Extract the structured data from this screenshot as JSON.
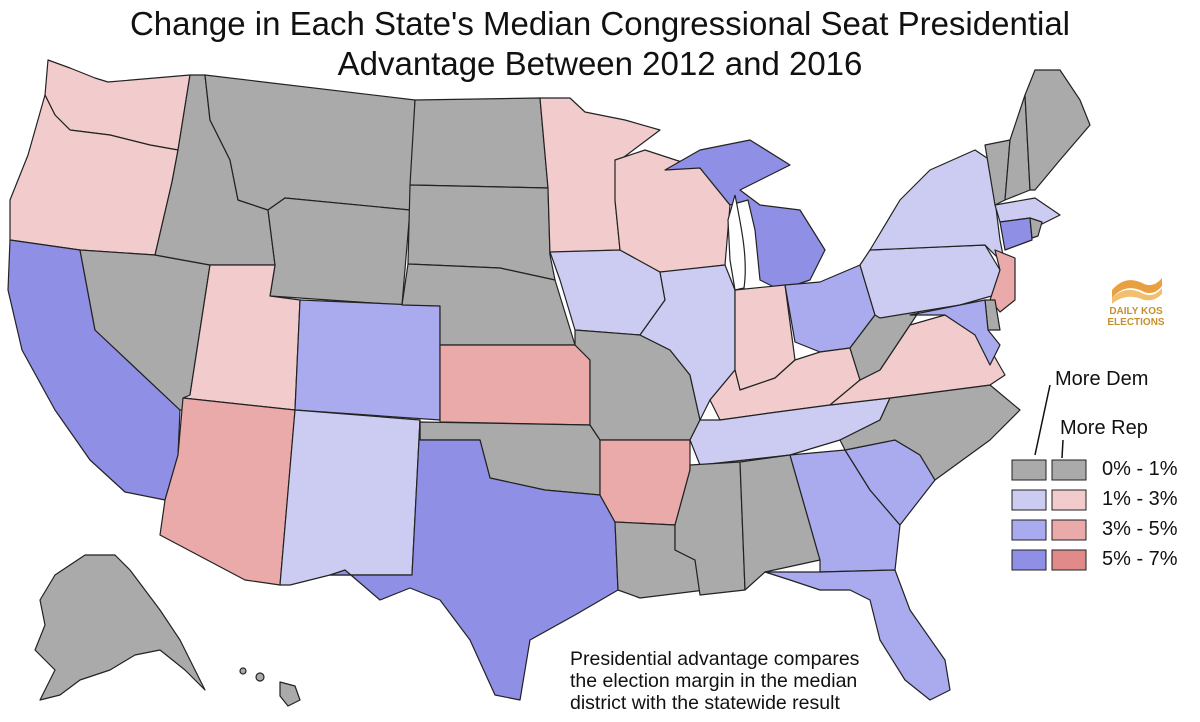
{
  "title": {
    "line1": "Change in Each State's Median Congressional Seat Presidential",
    "line2": "Advantage Between 2012 and 2016"
  },
  "colors": {
    "gray": "#aaaaaa",
    "dem_1_3": "#ccccf2",
    "dem_3_5": "#aaaaee",
    "dem_5_7": "#8f8fe6",
    "rep_1_3": "#f2cccc",
    "rep_3_5": "#ebaaaa",
    "rep_5_7": "#e08a8a",
    "land_outline": "#222222"
  },
  "legend": {
    "more_dem": "More Dem",
    "more_rep": "More Rep",
    "bins": [
      {
        "label": "0% -   1%",
        "dem_color": "gray",
        "rep_color": "gray"
      },
      {
        "label": "1% -   3%",
        "dem_color": "dem_1_3",
        "rep_color": "rep_1_3"
      },
      {
        "label": "3% -   5%",
        "dem_color": "dem_3_5",
        "rep_color": "rep_3_5"
      },
      {
        "label": "5% -   7%",
        "dem_color": "dem_5_7",
        "rep_color": "rep_5_7"
      }
    ]
  },
  "logo": {
    "line1": "DAILY KOS",
    "line2": "ELECTIONS"
  },
  "note": {
    "line1": "Presidential advantage compares",
    "line2": "the election margin in the median",
    "line3": "district with the statewide result"
  },
  "states": [
    {
      "abbr": "WA",
      "fill": "rep_1_3"
    },
    {
      "abbr": "OR",
      "fill": "rep_1_3"
    },
    {
      "abbr": "CA",
      "fill": "dem_5_7"
    },
    {
      "abbr": "NV",
      "fill": "gray"
    },
    {
      "abbr": "ID",
      "fill": "gray"
    },
    {
      "abbr": "MT",
      "fill": "gray"
    },
    {
      "abbr": "WY",
      "fill": "gray"
    },
    {
      "abbr": "UT",
      "fill": "rep_1_3"
    },
    {
      "abbr": "AZ",
      "fill": "rep_3_5"
    },
    {
      "abbr": "CO",
      "fill": "dem_3_5"
    },
    {
      "abbr": "NM",
      "fill": "dem_1_3"
    },
    {
      "abbr": "ND",
      "fill": "gray"
    },
    {
      "abbr": "SD",
      "fill": "gray"
    },
    {
      "abbr": "NE",
      "fill": "gray"
    },
    {
      "abbr": "KS",
      "fill": "rep_3_5"
    },
    {
      "abbr": "OK",
      "fill": "gray"
    },
    {
      "abbr": "TX",
      "fill": "dem_5_7"
    },
    {
      "abbr": "MN",
      "fill": "rep_1_3"
    },
    {
      "abbr": "IA",
      "fill": "dem_1_3"
    },
    {
      "abbr": "MO",
      "fill": "gray"
    },
    {
      "abbr": "AR",
      "fill": "rep_3_5"
    },
    {
      "abbr": "LA",
      "fill": "gray"
    },
    {
      "abbr": "WI",
      "fill": "rep_1_3"
    },
    {
      "abbr": "IL",
      "fill": "dem_1_3"
    },
    {
      "abbr": "MI",
      "fill": "dem_5_7"
    },
    {
      "abbr": "IN",
      "fill": "rep_1_3"
    },
    {
      "abbr": "OH",
      "fill": "dem_3_5"
    },
    {
      "abbr": "KY",
      "fill": "rep_1_3"
    },
    {
      "abbr": "TN",
      "fill": "dem_1_3"
    },
    {
      "abbr": "MS",
      "fill": "gray"
    },
    {
      "abbr": "AL",
      "fill": "gray"
    },
    {
      "abbr": "GA",
      "fill": "dem_3_5"
    },
    {
      "abbr": "FL",
      "fill": "dem_3_5"
    },
    {
      "abbr": "SC",
      "fill": "dem_3_5"
    },
    {
      "abbr": "NC",
      "fill": "gray"
    },
    {
      "abbr": "VA",
      "fill": "rep_1_3"
    },
    {
      "abbr": "WV",
      "fill": "gray"
    },
    {
      "abbr": "PA",
      "fill": "dem_1_3"
    },
    {
      "abbr": "NY",
      "fill": "dem_1_3"
    },
    {
      "abbr": "VT",
      "fill": "gray"
    },
    {
      "abbr": "NH",
      "fill": "gray"
    },
    {
      "abbr": "ME",
      "fill": "gray"
    },
    {
      "abbr": "MA",
      "fill": "dem_1_3"
    },
    {
      "abbr": "RI",
      "fill": "gray"
    },
    {
      "abbr": "CT",
      "fill": "dem_5_7"
    },
    {
      "abbr": "NJ",
      "fill": "rep_3_5"
    },
    {
      "abbr": "DE",
      "fill": "gray"
    },
    {
      "abbr": "MD",
      "fill": "dem_3_5"
    },
    {
      "abbr": "AK",
      "fill": "gray"
    },
    {
      "abbr": "HI",
      "fill": "gray"
    }
  ]
}
